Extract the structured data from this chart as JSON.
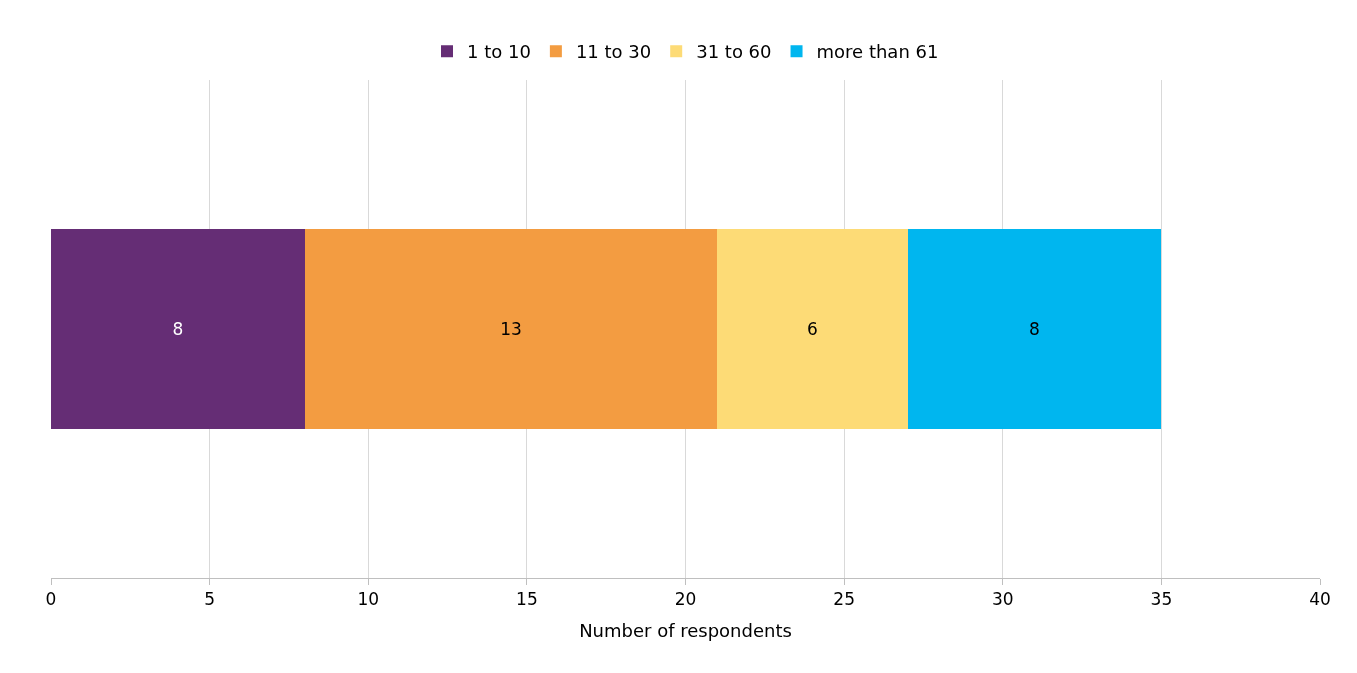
{
  "chart_data": {
    "type": "bar",
    "orientation": "horizontal",
    "stacked": true,
    "xlabel": "Number of respondents",
    "categories": [
      null
    ],
    "series": [
      {
        "name": "1 to 10",
        "color": "#652d75",
        "values": [
          8
        ]
      },
      {
        "name": "11 to 30",
        "color": "#f39c41",
        "values": [
          13
        ]
      },
      {
        "name": "31 to 60",
        "color": "#fddb76",
        "values": [
          6
        ]
      },
      {
        "name": "more than 61",
        "color": "#00b6ef",
        "values": [
          8
        ]
      }
    ],
    "xlim": [
      0,
      40
    ],
    "xticks": [
      0,
      5,
      10,
      15,
      20,
      25,
      30,
      35,
      40
    ],
    "grid": "x",
    "legend": "top",
    "data_labels": true,
    "tick_labels": "x"
  }
}
